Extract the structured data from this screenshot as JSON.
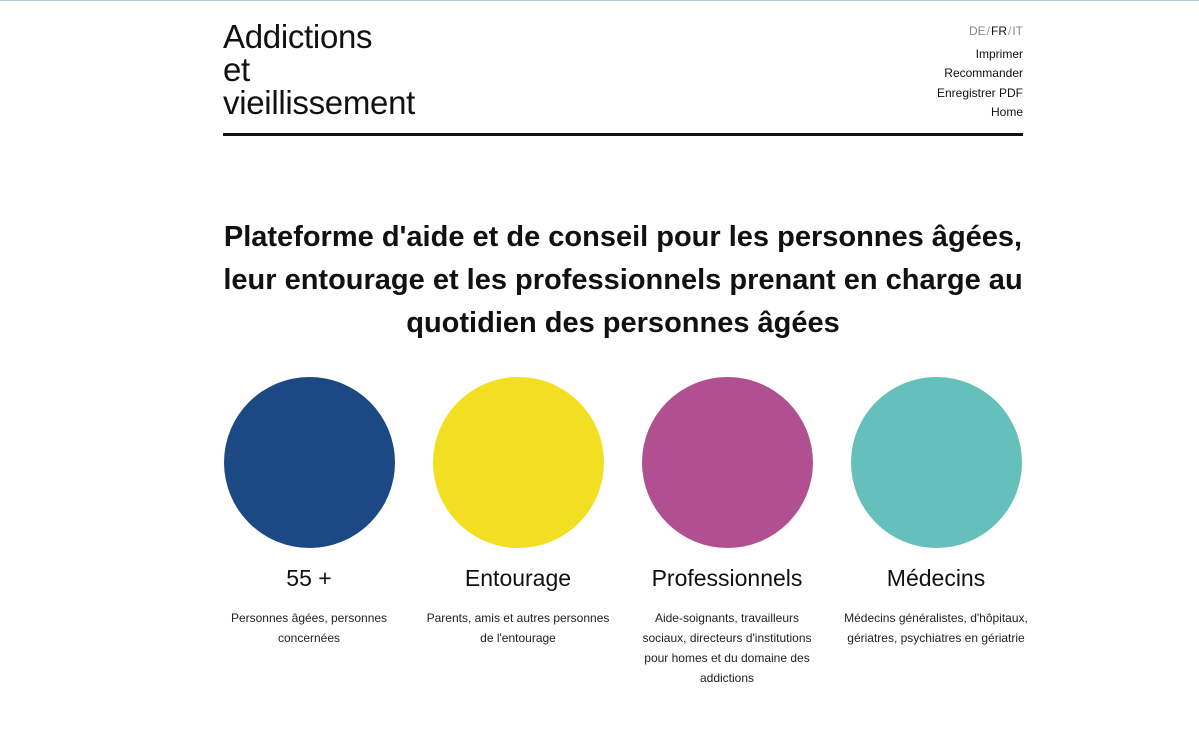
{
  "logo": {
    "line1": "Addictions",
    "line2": "et",
    "line3": "vieillissement"
  },
  "languages": {
    "de": "DE",
    "fr": "FR",
    "it": "IT",
    "separator": "/",
    "active": "FR"
  },
  "utility_nav": [
    {
      "label": "Imprimer"
    },
    {
      "label": "Recommander"
    },
    {
      "label": "Enregistrer PDF"
    },
    {
      "label": "Home"
    }
  ],
  "headline": "Plateforme d'aide et de conseil pour les personnes âgées, leur entourage et les professionnels prenant en charge au quotidien des personnes âgées",
  "tiles": [
    {
      "title": "55 +",
      "description": "Personnes âgées, personnes concernées",
      "color": "#1c4884"
    },
    {
      "title": "Entourage",
      "description": "Parents, amis et autres personnes de l'entourage",
      "color": "#f2df22"
    },
    {
      "title": "Professionnels",
      "description": "Aide-soignants, travailleurs sociaux, directeurs d'institutions pour homes et du domaine des addictions",
      "color": "#b05091"
    },
    {
      "title": "Médecins",
      "description": "Médecins généralistes, d'hôpitaux, gériatres, psychiatres en gériatrie",
      "color": "#65bfba"
    }
  ]
}
